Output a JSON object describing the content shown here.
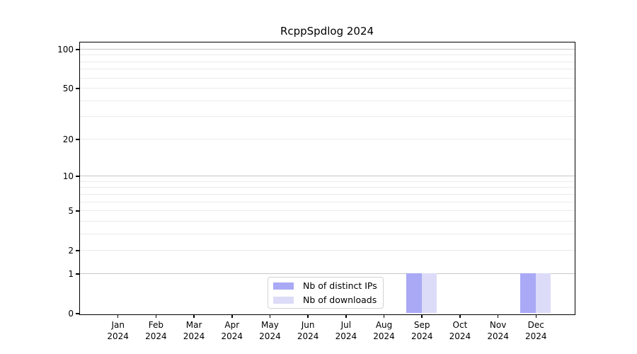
{
  "chart_data": {
    "type": "bar",
    "title": "RcppSpdlog 2024",
    "y_scale": "log1p",
    "ylim": [
      0,
      113
    ],
    "y_ticks": [
      100,
      50,
      20,
      10,
      5,
      2,
      1,
      0
    ],
    "major_gridlines": [
      100,
      10,
      1
    ],
    "minor_gridlines": [
      90,
      80,
      70,
      60,
      50,
      40,
      30,
      20,
      9,
      8,
      7,
      6,
      5,
      4,
      3,
      2
    ],
    "categories": [
      "Jan",
      "Feb",
      "Mar",
      "Apr",
      "May",
      "Jun",
      "Jul",
      "Aug",
      "Sep",
      "Oct",
      "Nov",
      "Dec"
    ],
    "category_year": "2024",
    "series": [
      {
        "name": "Nb of distinct IPs",
        "color": "#a9a9f5",
        "values": [
          0,
          0,
          0,
          0,
          0,
          0,
          0,
          0,
          1,
          0,
          0,
          1
        ]
      },
      {
        "name": "Nb of downloads",
        "color": "#dcdcf8",
        "values": [
          0,
          0,
          0,
          0,
          0,
          0,
          0,
          0,
          1,
          0,
          0,
          1
        ]
      }
    ],
    "legend_position": "bottom-center",
    "grid": true
  },
  "colors": {
    "major_grid": "#c6c6c6",
    "minor_grid": "#ebebeb",
    "axis": "#000000",
    "legend_border": "#d2d2d2",
    "background": "#ffffff"
  }
}
